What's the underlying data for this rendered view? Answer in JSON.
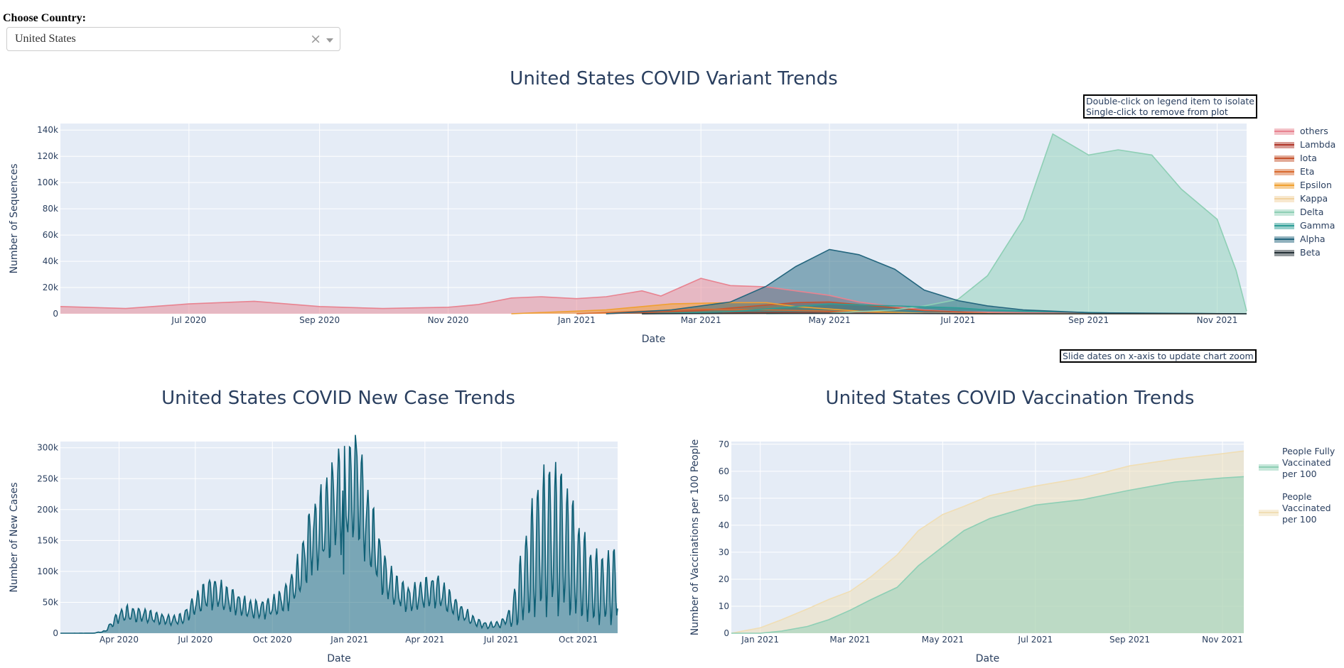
{
  "selector": {
    "label": "Choose Country:",
    "value": "United States",
    "clear_glyph": "×",
    "clear_icon": "close-icon",
    "caret_icon": "chevron-down-icon"
  },
  "variant_chart": {
    "title": "United States COVID Variant Trends",
    "note1": "Double-click on legend item to isolate",
    "note2": "Single-click to remove from plot",
    "note3": "Slide dates on x-axis to update chart zoom"
  },
  "case_chart": {
    "title": "United States COVID New Case Trends"
  },
  "vacc_chart": {
    "title": "United States COVID Vaccination Trends"
  },
  "chart_data": [
    {
      "type": "area",
      "title": "United States COVID Variant Trends",
      "xlabel": "Date",
      "ylabel": "Number of Sequences",
      "xlim": [
        "2020-05-01",
        "2021-11-15"
      ],
      "ylim": [
        0,
        145000
      ],
      "xticks": [
        "2020-07-01",
        "2020-09-01",
        "2020-11-01",
        "2021-01-01",
        "2021-03-01",
        "2021-05-01",
        "2021-07-01",
        "2021-09-01",
        "2021-11-01"
      ],
      "xtick_labels": [
        "Jul 2020",
        "Sep 2020",
        "Nov 2020",
        "Jan 2021",
        "Mar 2021",
        "May 2021",
        "Jul 2021",
        "Sep 2021",
        "Nov 2021"
      ],
      "yticks": [
        0,
        20000,
        40000,
        60000,
        80000,
        100000,
        120000,
        140000
      ],
      "ytick_labels": [
        "0",
        "20k",
        "40k",
        "60k",
        "80k",
        "100k",
        "120k",
        "140k"
      ],
      "grid": true,
      "legend_position": "right",
      "series": [
        {
          "name": "others",
          "color": "#e88390",
          "points": [
            [
              "2020-05-01",
              5500
            ],
            [
              "2020-06-01",
              4000
            ],
            [
              "2020-07-01",
              7500
            ],
            [
              "2020-08-01",
              9500
            ],
            [
              "2020-09-01",
              5500
            ],
            [
              "2020-10-01",
              4000
            ],
            [
              "2020-11-01",
              5000
            ],
            [
              "2020-11-15",
              7000
            ],
            [
              "2020-12-01",
              12000
            ],
            [
              "2020-12-15",
              13000
            ],
            [
              "2021-01-01",
              11500
            ],
            [
              "2021-01-15",
              13000
            ],
            [
              "2021-02-01",
              17500
            ],
            [
              "2021-02-10",
              13500
            ],
            [
              "2021-03-01",
              27000
            ],
            [
              "2021-03-15",
              21500
            ],
            [
              "2021-04-01",
              20500
            ],
            [
              "2021-04-15",
              17500
            ],
            [
              "2021-05-01",
              14000
            ],
            [
              "2021-05-15",
              9000
            ],
            [
              "2021-06-01",
              5500
            ],
            [
              "2021-06-15",
              3000
            ],
            [
              "2021-07-01",
              1500
            ],
            [
              "2021-08-01",
              800
            ],
            [
              "2021-09-01",
              500
            ],
            [
              "2021-11-15",
              0
            ]
          ]
        },
        {
          "name": "Lambda",
          "color": "#b2392c",
          "points": [
            [
              "2021-02-01",
              0
            ],
            [
              "2021-03-15",
              700
            ],
            [
              "2021-05-01",
              1000
            ],
            [
              "2021-06-15",
              600
            ],
            [
              "2021-08-01",
              200
            ],
            [
              "2021-11-15",
              0
            ]
          ]
        },
        {
          "name": "Iota",
          "color": "#c6532e",
          "points": [
            [
              "2021-01-15",
              0
            ],
            [
              "2021-03-01",
              2500
            ],
            [
              "2021-04-15",
              8500
            ],
            [
              "2021-05-01",
              9000
            ],
            [
              "2021-05-15",
              7000
            ],
            [
              "2021-06-15",
              2500
            ],
            [
              "2021-07-15",
              500
            ],
            [
              "2021-08-15",
              0
            ],
            [
              "2021-11-15",
              0
            ]
          ]
        },
        {
          "name": "Eta",
          "color": "#d96c31",
          "points": [
            [
              "2021-01-01",
              0
            ],
            [
              "2021-02-01",
              2000
            ],
            [
              "2021-03-01",
              3500
            ],
            [
              "2021-04-01",
              3000
            ],
            [
              "2021-05-01",
              2000
            ],
            [
              "2021-06-01",
              800
            ],
            [
              "2021-07-01",
              0
            ],
            [
              "2021-11-15",
              0
            ]
          ]
        },
        {
          "name": "Epsilon",
          "color": "#f0a030",
          "points": [
            [
              "2020-12-01",
              0
            ],
            [
              "2021-01-15",
              3000
            ],
            [
              "2021-02-15",
              7500
            ],
            [
              "2021-03-15",
              8500
            ],
            [
              "2021-04-01",
              8500
            ],
            [
              "2021-04-15",
              5500
            ],
            [
              "2021-05-15",
              2000
            ],
            [
              "2021-06-15",
              400
            ],
            [
              "2021-07-15",
              0
            ],
            [
              "2021-11-15",
              0
            ]
          ]
        },
        {
          "name": "Kappa",
          "color": "#f1d2a0",
          "points": [
            [
              "2021-03-01",
              0
            ],
            [
              "2021-05-01",
              400
            ],
            [
              "2021-07-01",
              300
            ],
            [
              "2021-09-01",
              0
            ],
            [
              "2021-11-15",
              0
            ]
          ]
        },
        {
          "name": "Delta",
          "color": "#8ecfb5",
          "points": [
            [
              "2021-04-01",
              0
            ],
            [
              "2021-05-01",
              500
            ],
            [
              "2021-06-01",
              3000
            ],
            [
              "2021-06-15",
              6000
            ],
            [
              "2021-07-01",
              11000
            ],
            [
              "2021-07-15",
              29000
            ],
            [
              "2021-08-01",
              72000
            ],
            [
              "2021-08-15",
              137000
            ],
            [
              "2021-09-01",
              121000
            ],
            [
              "2021-09-15",
              125000
            ],
            [
              "2021-10-01",
              121000
            ],
            [
              "2021-10-15",
              95000
            ],
            [
              "2021-11-01",
              72000
            ],
            [
              "2021-11-10",
              33000
            ],
            [
              "2021-11-15",
              2000
            ]
          ]
        },
        {
          "name": "Gamma",
          "color": "#2e9e96",
          "points": [
            [
              "2021-02-01",
              0
            ],
            [
              "2021-03-15",
              1500
            ],
            [
              "2021-05-01",
              7500
            ],
            [
              "2021-06-01",
              6000
            ],
            [
              "2021-07-01",
              4500
            ],
            [
              "2021-07-15",
              3000
            ],
            [
              "2021-08-15",
              1500
            ],
            [
              "2021-09-15",
              500
            ],
            [
              "2021-11-15",
              0
            ]
          ]
        },
        {
          "name": "Alpha",
          "color": "#24667e",
          "points": [
            [
              "2021-01-15",
              0
            ],
            [
              "2021-02-15",
              3000
            ],
            [
              "2021-03-15",
              9000
            ],
            [
              "2021-04-01",
              21000
            ],
            [
              "2021-04-15",
              36000
            ],
            [
              "2021-05-01",
              49000
            ],
            [
              "2021-05-15",
              45000
            ],
            [
              "2021-06-01",
              34000
            ],
            [
              "2021-06-15",
              18000
            ],
            [
              "2021-07-01",
              10000
            ],
            [
              "2021-07-15",
              6000
            ],
            [
              "2021-08-01",
              3000
            ],
            [
              "2021-09-01",
              800
            ],
            [
              "2021-11-15",
              0
            ]
          ]
        },
        {
          "name": "Beta",
          "color": "#263238",
          "points": [
            [
              "2021-02-01",
              0
            ],
            [
              "2021-04-01",
              300
            ],
            [
              "2021-06-01",
              200
            ],
            [
              "2021-08-01",
              0
            ],
            [
              "2021-11-15",
              0
            ]
          ]
        }
      ],
      "annotations": [
        "Double-click on legend item to isolate",
        "Single-click to remove from plot",
        "Slide dates on x-axis to update chart zoom"
      ]
    },
    {
      "type": "area",
      "title": "United States COVID New Case Trends",
      "xlabel": "Date",
      "ylabel": "Number of New Cases",
      "xlim": [
        "2020-01-22",
        "2021-11-17"
      ],
      "ylim": [
        0,
        310000
      ],
      "xticks": [
        "2020-04-01",
        "2020-07-01",
        "2020-10-01",
        "2021-01-01",
        "2021-04-01",
        "2021-07-01",
        "2021-10-01"
      ],
      "xtick_labels": [
        "Apr 2020",
        "Jul 2020",
        "Oct 2020",
        "Jan 2021",
        "Apr 2021",
        "Jul 2021",
        "Oct 2021"
      ],
      "yticks": [
        0,
        50000,
        100000,
        150000,
        200000,
        250000,
        300000
      ],
      "ytick_labels": [
        "0",
        "50k",
        "100k",
        "150k",
        "200k",
        "250k",
        "300k"
      ],
      "grid": true,
      "color": "#0e5f75",
      "trend": [
        [
          "2020-01-22",
          0
        ],
        [
          "2020-03-01",
          100
        ],
        [
          "2020-03-15",
          3000
        ],
        [
          "2020-04-01",
          28000
        ],
        [
          "2020-04-10",
          32000
        ],
        [
          "2020-05-01",
          29000
        ],
        [
          "2020-05-15",
          25000
        ],
        [
          "2020-06-01",
          21000
        ],
        [
          "2020-06-15",
          23000
        ],
        [
          "2020-07-01",
          47000
        ],
        [
          "2020-07-20",
          68000
        ],
        [
          "2020-08-01",
          60000
        ],
        [
          "2020-08-15",
          52000
        ],
        [
          "2020-09-01",
          40000
        ],
        [
          "2020-09-15",
          38000
        ],
        [
          "2020-10-01",
          43000
        ],
        [
          "2020-10-15",
          55000
        ],
        [
          "2020-11-01",
          90000
        ],
        [
          "2020-11-15",
          150000
        ],
        [
          "2020-12-01",
          175000
        ],
        [
          "2020-12-15",
          215000
        ],
        [
          "2021-01-01",
          230000
        ],
        [
          "2021-01-10",
          250000
        ],
        [
          "2021-01-20",
          185000
        ],
        [
          "2021-02-01",
          135000
        ],
        [
          "2021-02-15",
          85000
        ],
        [
          "2021-03-01",
          65000
        ],
        [
          "2021-03-15",
          55000
        ],
        [
          "2021-04-01",
          65000
        ],
        [
          "2021-04-15",
          70000
        ],
        [
          "2021-05-01",
          50000
        ],
        [
          "2021-05-15",
          33000
        ],
        [
          "2021-06-01",
          18000
        ],
        [
          "2021-06-15",
          12000
        ],
        [
          "2021-07-01",
          15000
        ],
        [
          "2021-07-15",
          35000
        ],
        [
          "2021-08-01",
          100000
        ],
        [
          "2021-08-15",
          145000
        ],
        [
          "2021-09-01",
          160000
        ],
        [
          "2021-09-15",
          145000
        ],
        [
          "2021-10-01",
          105000
        ],
        [
          "2021-10-15",
          78000
        ],
        [
          "2021-11-01",
          72000
        ],
        [
          "2021-11-17",
          82000
        ]
      ],
      "weekly_amplitude": 0.35
    },
    {
      "type": "area",
      "title": "United States COVID Vaccination Trends",
      "xlabel": "Date",
      "ylabel": "Number of Vaccinations per 100 People",
      "xlim": [
        "2020-12-13",
        "2021-11-15"
      ],
      "ylim": [
        0,
        71
      ],
      "xticks": [
        "2021-01-01",
        "2021-03-01",
        "2021-05-01",
        "2021-07-01",
        "2021-09-01",
        "2021-11-01"
      ],
      "xtick_labels": [
        "Jan 2021",
        "Mar 2021",
        "May 2021",
        "Jul 2021",
        "Sep 2021",
        "Nov 2021"
      ],
      "yticks": [
        0,
        10,
        20,
        30,
        40,
        50,
        60,
        70
      ],
      "ytick_labels": [
        "0",
        "10",
        "20",
        "30",
        "40",
        "50",
        "60",
        "70"
      ],
      "grid": true,
      "legend_position": "right",
      "series": [
        {
          "name": "People Vaccinated per 100",
          "legend_lines": [
            "People",
            "Vaccinated",
            "per 100"
          ],
          "color": "#f0deb4",
          "points": [
            [
              "2020-12-13",
              0
            ],
            [
              "2021-01-01",
              2
            ],
            [
              "2021-01-15",
              5
            ],
            [
              "2021-02-01",
              9
            ],
            [
              "2021-02-15",
              12.5
            ],
            [
              "2021-03-01",
              15.5
            ],
            [
              "2021-03-15",
              21
            ],
            [
              "2021-04-01",
              29
            ],
            [
              "2021-04-15",
              38
            ],
            [
              "2021-05-01",
              44
            ],
            [
              "2021-05-15",
              47
            ],
            [
              "2021-06-01",
              51
            ],
            [
              "2021-07-01",
              54.5
            ],
            [
              "2021-08-01",
              57.5
            ],
            [
              "2021-09-01",
              62
            ],
            [
              "2021-10-01",
              64.5
            ],
            [
              "2021-11-01",
              66.5
            ],
            [
              "2021-11-15",
              67.5
            ]
          ]
        },
        {
          "name": "People Fully Vaccinated per 100",
          "legend_lines": [
            "People Fully",
            "Vaccinated",
            "per 100"
          ],
          "color": "#8ecfb5",
          "points": [
            [
              "2020-12-13",
              0
            ],
            [
              "2021-01-01",
              0
            ],
            [
              "2021-01-15",
              0.8
            ],
            [
              "2021-02-01",
              2.5
            ],
            [
              "2021-02-15",
              5
            ],
            [
              "2021-03-01",
              8.5
            ],
            [
              "2021-03-15",
              12.5
            ],
            [
              "2021-04-01",
              17
            ],
            [
              "2021-04-15",
              25
            ],
            [
              "2021-05-01",
              32
            ],
            [
              "2021-05-15",
              38
            ],
            [
              "2021-06-01",
              42.5
            ],
            [
              "2021-07-01",
              47.5
            ],
            [
              "2021-08-01",
              49.5
            ],
            [
              "2021-09-01",
              53
            ],
            [
              "2021-10-01",
              56
            ],
            [
              "2021-11-01",
              57.5
            ],
            [
              "2021-11-15",
              58
            ]
          ]
        }
      ]
    }
  ]
}
